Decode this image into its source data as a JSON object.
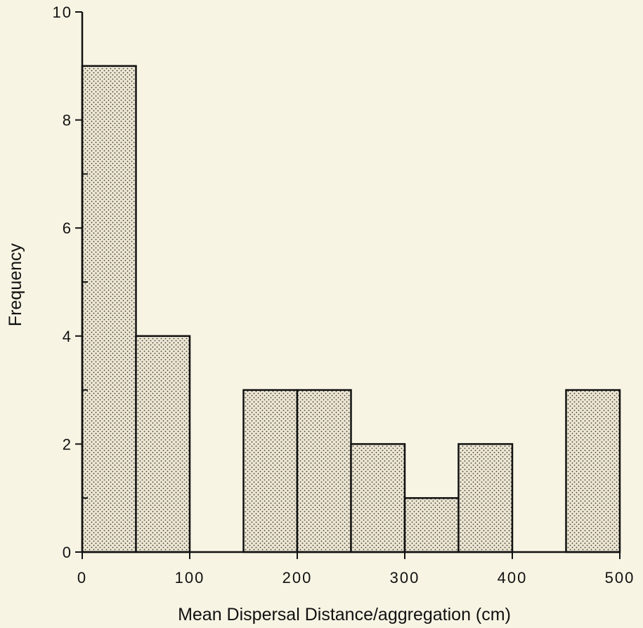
{
  "chart_data": {
    "type": "bar",
    "title": "",
    "xlabel": "Mean Dispersal Distance/aggregation  (cm)",
    "ylabel": "Frequency",
    "xlim": [
      0,
      500
    ],
    "ylim": [
      0,
      10
    ],
    "x_ticks": [
      "0",
      "100",
      "200",
      "300",
      "400",
      "500"
    ],
    "y_ticks": [
      "0",
      "2",
      "4",
      "6",
      "8",
      "10"
    ],
    "bins": [
      {
        "start": 0,
        "end": 50,
        "value": 9
      },
      {
        "start": 50,
        "end": 100,
        "value": 4
      },
      {
        "start": 100,
        "end": 150,
        "value": 0
      },
      {
        "start": 150,
        "end": 200,
        "value": 3
      },
      {
        "start": 200,
        "end": 250,
        "value": 3
      },
      {
        "start": 250,
        "end": 300,
        "value": 2
      },
      {
        "start": 300,
        "end": 350,
        "value": 1
      },
      {
        "start": 350,
        "end": 400,
        "value": 2
      },
      {
        "start": 400,
        "end": 450,
        "value": 0
      },
      {
        "start": 450,
        "end": 500,
        "value": 3
      }
    ],
    "grid": false,
    "colors": {
      "bar_fill": "#ece6d2",
      "stipple": "#3a3a3a",
      "stroke": "#111111",
      "background": "#f8f4e4"
    }
  }
}
